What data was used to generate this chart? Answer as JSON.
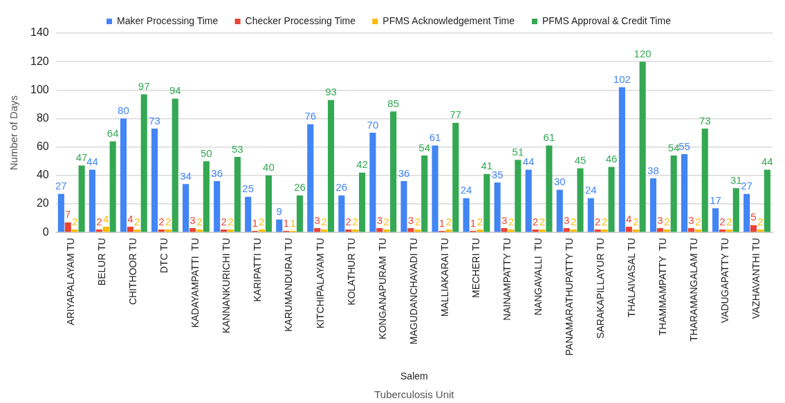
{
  "chart_data": {
    "type": "bar",
    "xlabel": "Tuberculosis Unit",
    "ylabel": "Number of Days",
    "annotations": [
      "Salem"
    ],
    "categories": [
      "ARIYAPALAYAM TU",
      "BELUR TU",
      "CHITHOOR TU",
      "DTC TU",
      "KADAYAMPATTI  TU",
      "KANNANKURICHI TU",
      "KARIPATTI TU",
      "KARUMANDURAI TU",
      "KITCHIPALAYAM TU",
      "KOLATHUR TU",
      "KONGANAPURAM  TU",
      "MAGUDANCHAVADI TU",
      "MALLIAKARAI TU",
      "MECHERI TU",
      "NAINAMPATTY TU",
      "NANGAVALLI  TU",
      "PANAMARATHUPATTY TU",
      "SARAKAPILLAYUR TU",
      "THALAIVASAL TU",
      "THAMMAMPATTY  TU",
      "THARAMANGALAM TU",
      "VADUGAPATTY TU",
      "VAZHAVANTHI TU"
    ],
    "series": [
      {
        "name": "Maker Processing Time",
        "color": "#4285f4",
        "values": [
          27,
          44,
          80,
          73,
          34,
          36,
          25,
          9,
          76,
          26,
          70,
          36,
          61,
          24,
          35,
          44,
          30,
          24,
          102,
          38,
          55,
          17,
          27
        ]
      },
      {
        "name": "Checker Processing Time",
        "color": "#ea4335",
        "values": [
          7,
          2,
          4,
          2,
          3,
          2,
          1,
          1,
          3,
          2,
          3,
          3,
          1,
          1,
          3,
          2,
          3,
          2,
          4,
          3,
          3,
          2,
          5
        ]
      },
      {
        "name": "PFMS Acknowledgement Time",
        "color": "#fbbc04",
        "values": [
          2,
          4,
          2,
          2,
          2,
          2,
          2,
          1,
          2,
          2,
          2,
          2,
          2,
          2,
          2,
          2,
          2,
          2,
          2,
          2,
          2,
          2,
          2
        ]
      },
      {
        "name": "PFMS Approval & Credit Time",
        "color": "#34a853",
        "values": [
          47,
          64,
          97,
          94,
          50,
          53,
          40,
          26,
          93,
          42,
          85,
          54,
          77,
          41,
          51,
          61,
          45,
          46,
          120,
          54,
          73,
          31,
          44
        ]
      }
    ],
    "ylim": [
      0,
      140
    ],
    "yticks": [
      0,
      20,
      40,
      60,
      80,
      100,
      120,
      140
    ],
    "grid": "y",
    "legend": "top",
    "data_labels": true
  }
}
